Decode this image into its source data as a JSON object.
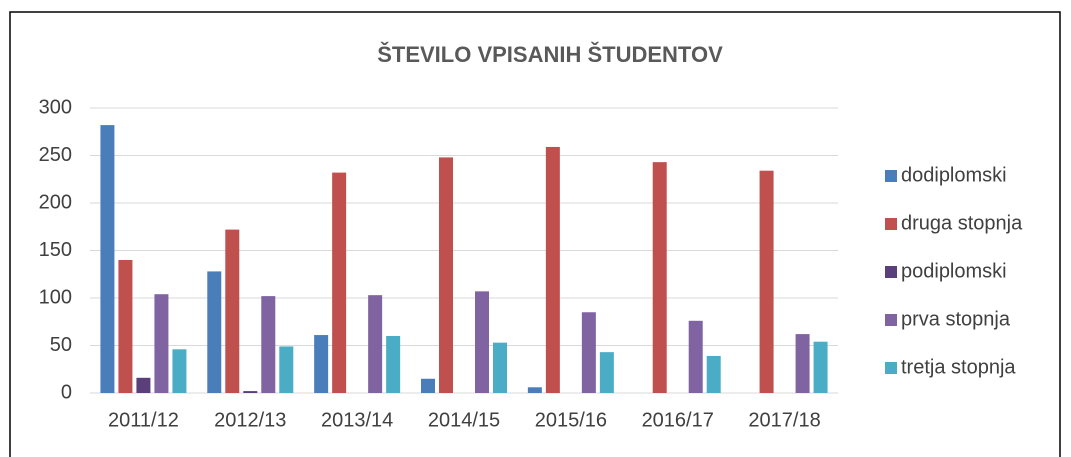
{
  "chart_data": {
    "type": "bar",
    "title": "ŠTEVILO VPISANIH ŠTUDENTOV",
    "categories": [
      "2011/12",
      "2012/13",
      "2013/14",
      "2014/15",
      "2015/16",
      "2016/17",
      "2017/18"
    ],
    "series": [
      {
        "name": "dodiplomski",
        "color": "#4a7ebb",
        "values": [
          282,
          128,
          61,
          15,
          6,
          null,
          null
        ]
      },
      {
        "name": "druga stopnja",
        "color": "#c0504d",
        "values": [
          140,
          172,
          232,
          248,
          259,
          243,
          234
        ]
      },
      {
        "name": "podiplomski",
        "color": "#5b3f7a",
        "values": [
          16,
          2,
          null,
          null,
          null,
          null,
          null
        ]
      },
      {
        "name": "prva stopnja",
        "color": "#8064a2",
        "values": [
          104,
          102,
          103,
          107,
          85,
          76,
          62
        ]
      },
      {
        "name": "tretja stopnja",
        "color": "#4bacc6",
        "values": [
          46,
          49,
          60,
          53,
          43,
          39,
          54
        ]
      }
    ],
    "ylim": [
      0,
      300
    ],
    "yticks": [
      0,
      50,
      100,
      150,
      200,
      250,
      300
    ],
    "grid": true,
    "legend": "right"
  }
}
